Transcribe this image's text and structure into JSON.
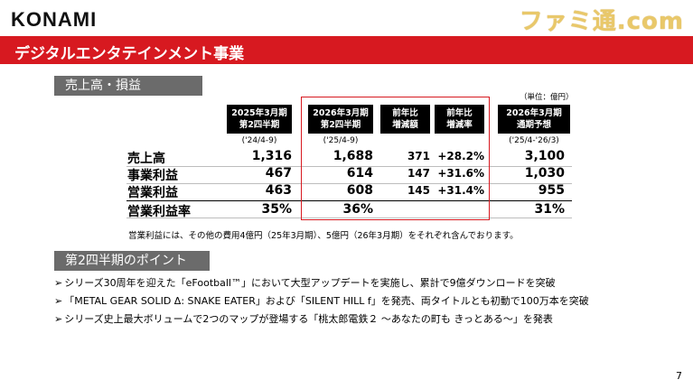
{
  "header": {
    "logo_text": "KONAMI",
    "watermark_text": "ファミ通.com",
    "title": "デジタルエンタテインメント事業"
  },
  "sales_section": {
    "label": "売上高・損益",
    "unit_note": "（単位：億円）",
    "columns": [
      {
        "line1": "2025年3月期",
        "line2": "第2四半期",
        "period": "('24/4-9)"
      },
      {
        "line1": "2026年3月期",
        "line2": "第2四半期",
        "period": "('25/4-9)"
      },
      {
        "line1": "前年比",
        "line2": "増減額",
        "period": ""
      },
      {
        "line1": "前年比",
        "line2": "増減率",
        "period": ""
      },
      {
        "line1": "2026年3月期",
        "line2": "通期予想",
        "period": "('25/4-'26/3)"
      }
    ],
    "rows": [
      {
        "label": "売上高",
        "prev": "1,316",
        "curr": "1,688",
        "diff": "371",
        "rate": "+28.2%",
        "forecast": "3,100"
      },
      {
        "label": "事業利益",
        "prev": "467",
        "curr": "614",
        "diff": "147",
        "rate": "+31.6%",
        "forecast": "1,030"
      },
      {
        "label": "営業利益",
        "prev": "463",
        "curr": "608",
        "diff": "145",
        "rate": "+31.4%",
        "forecast": "955"
      },
      {
        "label": "営業利益率",
        "prev": "35%",
        "curr": "36%",
        "diff": "",
        "rate": "",
        "forecast": "31%"
      }
    ],
    "footnote": "営業利益には、その他の費用4億円（25年3月期）、5億円（26年3月期）をそれぞれ含んでおります。"
  },
  "points_section": {
    "label": "第2四半期のポイント",
    "bullet_mark": "➢",
    "items": [
      "シリーズ30周年を迎えた「eFootball™」において大型アップデートを実施し、累計で9億ダウンロードを突破",
      "「METAL GEAR SOLID Δ: SNAKE EATER」および「SILENT HILL f」を発売、両タイトルとも初動で100万本を突破",
      "シリーズ史上最大ボリュームで2つのマップが登場する「桃太郎電鉄２ ～あなたの町も きっとある～」を発表"
    ]
  },
  "page_number": "7",
  "colors": {
    "accent_red": "#d71920",
    "section_gray": "#6b6b6b",
    "header_black": "#000000"
  }
}
